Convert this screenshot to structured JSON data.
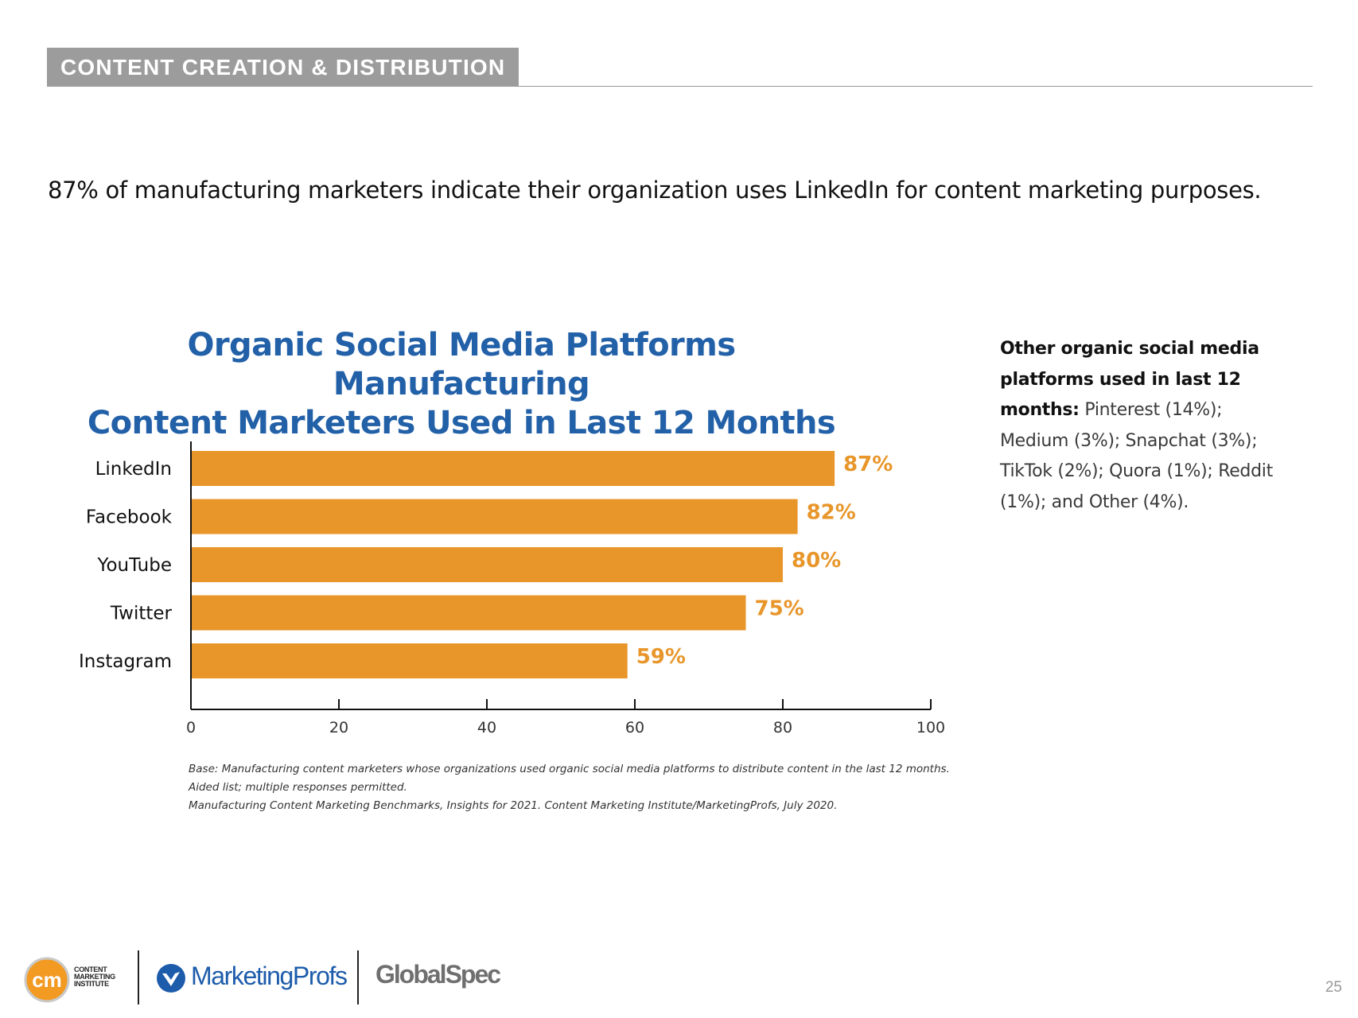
{
  "section": {
    "label": "CONTENT CREATION & DISTRIBUTION"
  },
  "headline": "87% of manufacturing marketers indicate their organization uses LinkedIn for content marketing purposes.",
  "chart_data": {
    "type": "bar",
    "orientation": "horizontal",
    "title_line1": "Organic Social Media Platforms Manufacturing",
    "title_line2": "Content Marketers Used in Last 12 Months",
    "categories": [
      "LinkedIn",
      "Facebook",
      "YouTube",
      "Twitter",
      "Instagram"
    ],
    "values": [
      87,
      82,
      80,
      75,
      59
    ],
    "data_labels": [
      "87%",
      "82%",
      "80%",
      "75%",
      "59%"
    ],
    "xlim": [
      0,
      100
    ],
    "xticks": [
      0,
      20,
      40,
      60,
      80,
      100
    ],
    "grid": false,
    "bar_color": "#e8962a",
    "label_color": "#e8962a"
  },
  "side_note": {
    "bold": "Other organic social media platforms used in last 12 months:",
    "text": " Pinterest (14%); Medium (3%); Snapchat (3%); TikTok (2%); Quora (1%); Reddit (1%); and Other (4%)."
  },
  "base_note": {
    "line1": "Base: Manufacturing content marketers whose organizations used organic social media platforms to distribute content in the last 12 months.",
    "line2": "Aided list; multiple responses permitted.",
    "line3": "Manufacturing Content Marketing Benchmarks, Insights for 2021. Content Marketing Institute/MarketingProfs, July 2020."
  },
  "logos": {
    "cmi_mark": "cm",
    "cmi_line1": "CONTENT",
    "cmi_line2": "MARKETING",
    "cmi_line3": "INSTITUTE",
    "marketingprofs": "MarketingProfs",
    "globalspec": "GlobalSpec"
  },
  "page_number": "25",
  "colors": {
    "title_blue": "#2260a8",
    "bar_orange": "#e8962a",
    "tag_gray": "#9c9c9c"
  }
}
